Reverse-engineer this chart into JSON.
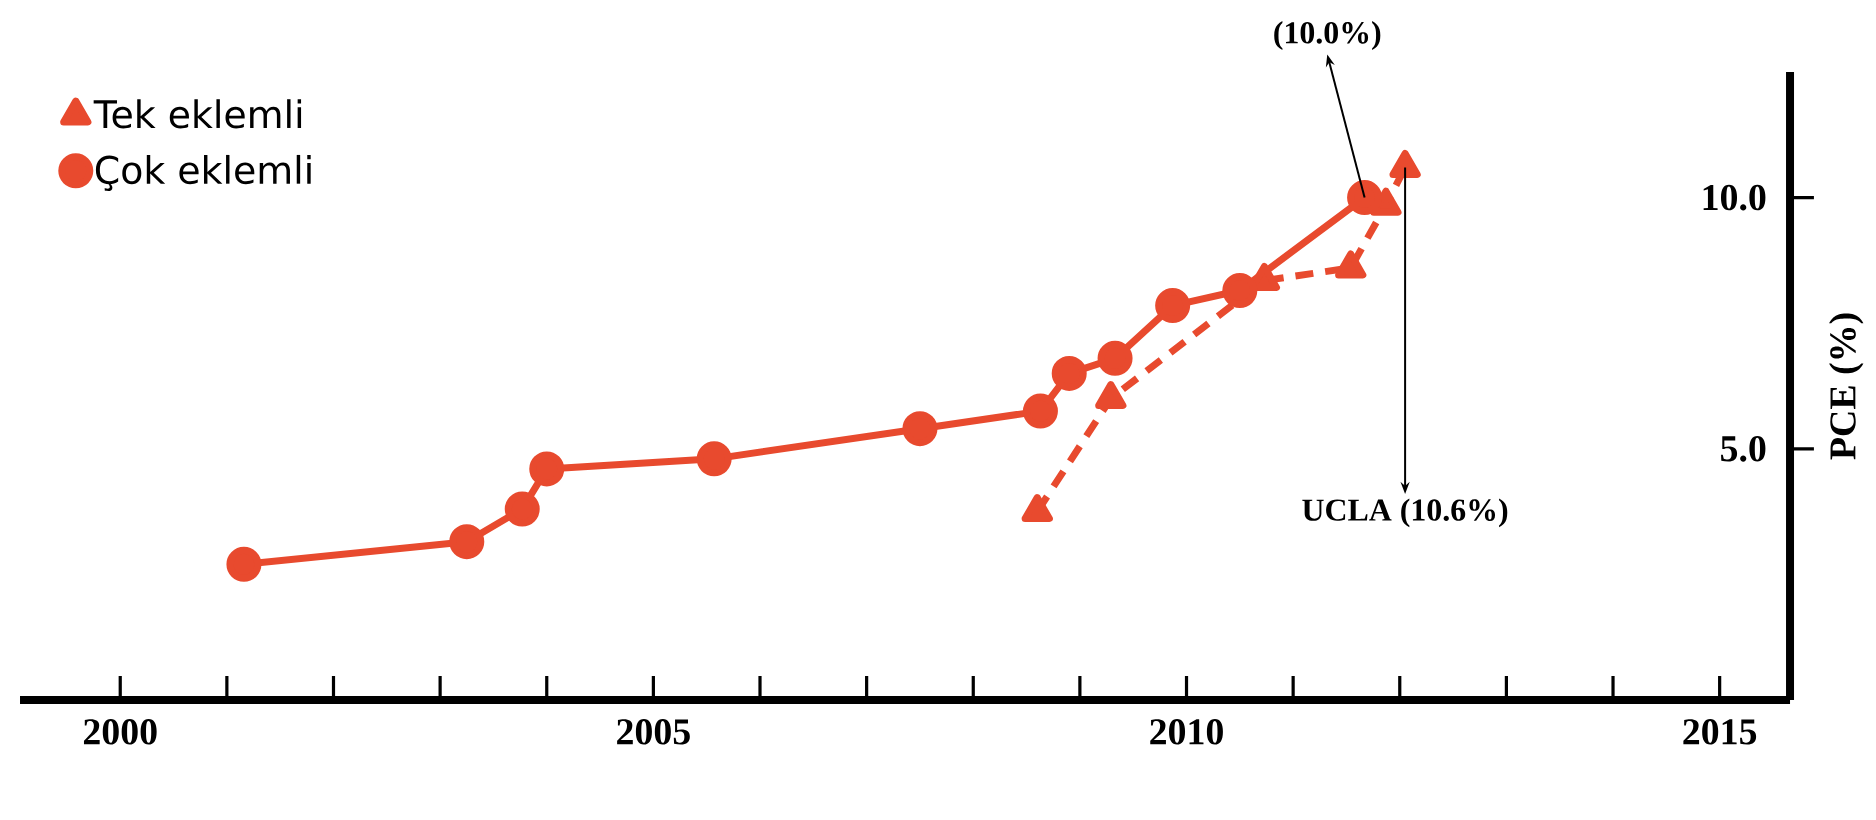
{
  "chart_data": {
    "type": "line",
    "ylabel": "PCE (%)",
    "xlim": [
      1999.06,
      2015.66
    ],
    "ylim": [
      0,
      12.5
    ],
    "xticks": [
      2000,
      {
        "value": 2001,
        "label": null
      },
      {
        "value": 2002,
        "label": null
      },
      {
        "value": 2003,
        "label": null
      },
      {
        "value": 2004,
        "label": null
      },
      2005,
      {
        "value": 2006,
        "label": null
      },
      {
        "value": 2007,
        "label": null
      },
      {
        "value": 2008,
        "label": null
      },
      {
        "value": 2009,
        "label": null
      },
      2010,
      {
        "value": 2011,
        "label": null
      },
      {
        "value": 2012,
        "label": null
      },
      {
        "value": 2013,
        "label": null
      },
      {
        "value": 2014,
        "label": null
      },
      2015
    ],
    "yticks": [
      {
        "value": 5,
        "label": "5.0"
      },
      {
        "value": 10,
        "label": "10.0"
      }
    ],
    "legend": "top left",
    "series": [
      {
        "name": "Tek eklemli",
        "color": "#e84a2e",
        "marker": "triangle",
        "line_style": "dashed",
        "x": [
          2008.6,
          2009.29,
          2010.73,
          2011.54,
          2011.87,
          2012.05
        ],
        "values": [
          3.75,
          6.0,
          8.35,
          8.6,
          9.85,
          10.6
        ]
      },
      {
        "name": "Çok eklemli",
        "color": "#e84a2e",
        "marker": "circle",
        "line_style": "solid",
        "x": [
          2001.16,
          2003.25,
          2003.77,
          2004.0,
          2005.57,
          2007.5,
          2008.63,
          2008.9,
          2009.33,
          2009.87,
          2010.5,
          2011.67
        ],
        "values": [
          2.7,
          3.15,
          3.8,
          4.6,
          4.8,
          5.4,
          5.75,
          6.5,
          6.8,
          7.85,
          8.15,
          10.0
        ]
      }
    ],
    "annotations": [
      {
        "text": "(10.0%)",
        "x": 2011.67,
        "y": 10.0
      },
      {
        "text": "UCLA (10.6%)",
        "x": 2012.05,
        "y": 10.6
      }
    ]
  }
}
